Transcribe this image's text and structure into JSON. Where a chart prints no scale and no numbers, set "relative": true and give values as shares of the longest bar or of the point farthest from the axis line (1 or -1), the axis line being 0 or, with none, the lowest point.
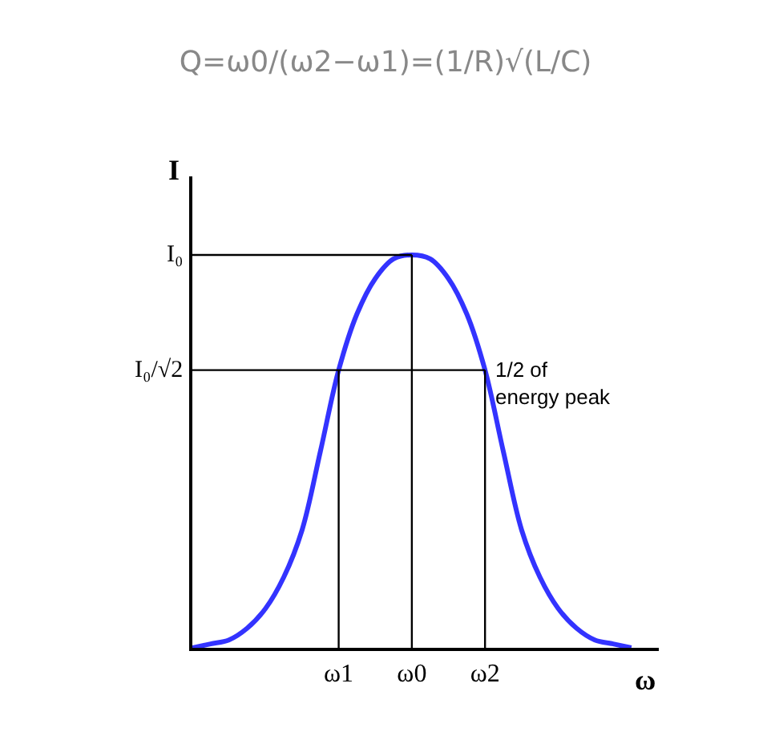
{
  "chart_data": {
    "type": "line",
    "title": "Q=ω0/(ω2−ω1)=(1/R)√(L/C)",
    "xlabel": "ω",
    "ylabel": "I",
    "relative": true,
    "categories": [
      null,
      null,
      null,
      null,
      null,
      null,
      null,
      null,
      "ω1",
      null,
      null,
      null,
      "ω0",
      null,
      null,
      null,
      "ω2",
      null,
      null,
      null,
      null,
      null,
      null,
      null,
      null
    ],
    "series": [
      {
        "color": "#3333ff",
        "values": [
          0,
          0.01,
          0.02,
          0.05,
          0.1,
          0.18,
          0.3,
          0.5,
          0.707,
          0.85,
          0.94,
          0.99,
          1.0,
          0.99,
          0.94,
          0.85,
          0.707,
          0.5,
          0.3,
          0.18,
          0.1,
          0.05,
          0.02,
          0.01,
          0
        ]
      }
    ],
    "ref_lines": [
      {
        "axis": "y",
        "value": 1.0,
        "color": "#000000",
        "label": "I₀"
      },
      {
        "axis": "y",
        "value": 0.707,
        "color": "#000000",
        "label": "I₀/√2"
      },
      {
        "axis": "x",
        "value": "ω1",
        "color": "#000000"
      },
      {
        "axis": "x",
        "value": "ω0",
        "color": "#000000"
      },
      {
        "axis": "x",
        "value": "ω2",
        "color": "#000000"
      }
    ],
    "annotations": [
      {
        "text": "1/2 of\nenergy peak",
        "x": "ω2",
        "y": 0.707
      }
    ],
    "marker": "none",
    "line_style": "solid"
  }
}
